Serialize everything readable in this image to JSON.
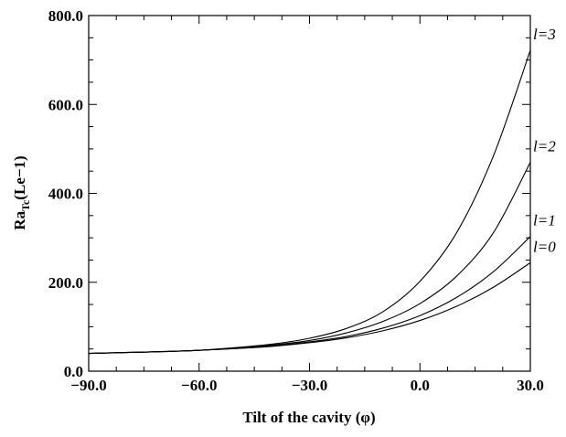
{
  "chart_data": {
    "type": "line",
    "xlabel": "Tilt of the cavity (φ)",
    "ylabel": {
      "base": "Ra",
      "sub": "Tc",
      "rest": "(Le−1)"
    },
    "xlim": [
      -90,
      30
    ],
    "ylim": [
      0,
      800
    ],
    "x_ticks": [
      -90,
      -60,
      -30,
      0,
      30
    ],
    "x_tick_labels": [
      "−90.0",
      "−60.0",
      "−30.0",
      "0.0",
      "30.0"
    ],
    "y_ticks": [
      0,
      200,
      400,
      600,
      800
    ],
    "y_tick_labels": [
      "0.0",
      "200.0",
      "400.0",
      "600.0",
      "800.0"
    ],
    "grid": false,
    "series": [
      {
        "name": "l=0",
        "x": [
          -90,
          -80,
          -70,
          -60,
          -50,
          -40,
          -30,
          -20,
          -10,
          0,
          10,
          20,
          30
        ],
        "y": [
          40,
          42,
          44,
          47,
          51,
          56,
          64,
          75,
          91,
          114,
          146,
          189,
          244
        ]
      },
      {
        "name": "l=1",
        "x": [
          -90,
          -80,
          -70,
          -60,
          -50,
          -40,
          -30,
          -20,
          -10,
          0,
          10,
          20,
          30
        ],
        "y": [
          40,
          42,
          44,
          47,
          51,
          57,
          66,
          78,
          97,
          125,
          166,
          224,
          303
        ]
      },
      {
        "name": "l=2",
        "x": [
          -90,
          -80,
          -70,
          -60,
          -50,
          -40,
          -30,
          -20,
          -10,
          0,
          10,
          20,
          30
        ],
        "y": [
          40,
          42,
          44,
          47,
          52,
          59,
          69,
          86,
          112,
          152,
          214,
          312,
          470
        ]
      },
      {
        "name": "l=3",
        "x": [
          -90,
          -80,
          -70,
          -60,
          -50,
          -40,
          -30,
          -20,
          -10,
          0,
          10,
          20,
          30
        ],
        "y": [
          40,
          42,
          44,
          47,
          53,
          61,
          74,
          96,
          134,
          202,
          312,
          485,
          722
        ]
      }
    ]
  }
}
